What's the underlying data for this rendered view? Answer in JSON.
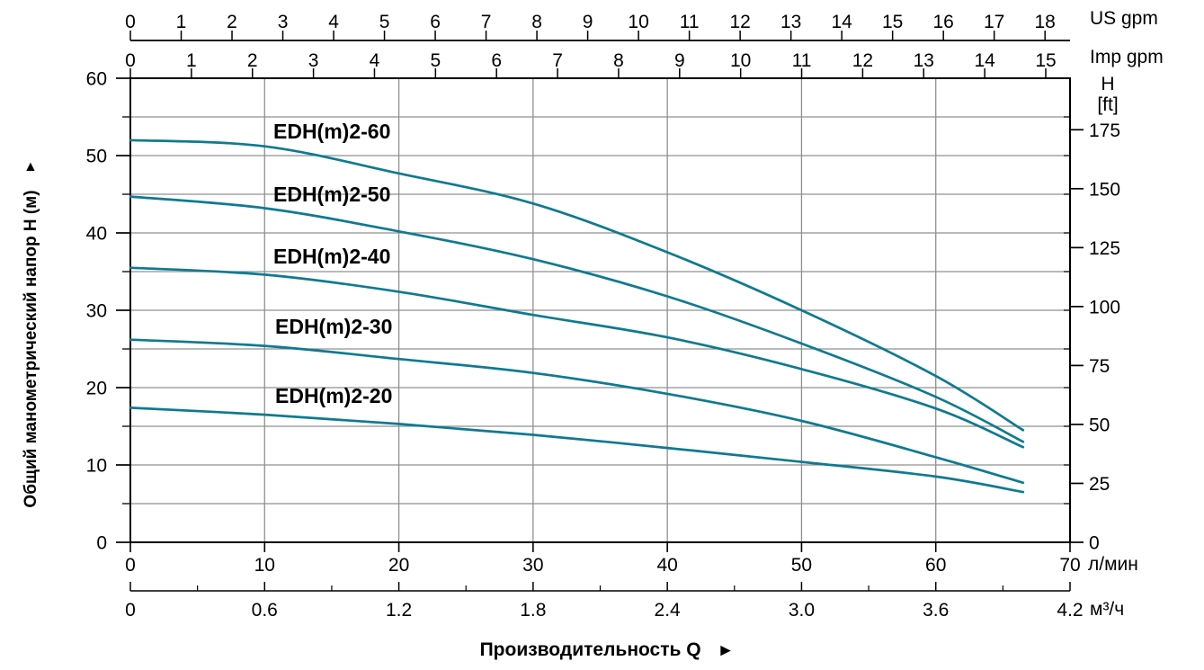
{
  "chart_data": {
    "type": "line",
    "title": "",
    "x_axis_us_gpm": {
      "label": "US gpm",
      "ticks": [
        0,
        1,
        2,
        3,
        4,
        5,
        6,
        7,
        8,
        9,
        10,
        11,
        12,
        13,
        14,
        15,
        16,
        17,
        18
      ],
      "lmin_per_unit": 3.78541
    },
    "x_axis_imp_gpm": {
      "label": "Imp gpm",
      "ticks": [
        0,
        1,
        2,
        3,
        4,
        5,
        6,
        7,
        8,
        9,
        10,
        11,
        12,
        13,
        14,
        15
      ],
      "lmin_per_unit": 4.54609
    },
    "x_axis_lmin": {
      "label": "л/мин",
      "ticks": [
        0,
        10,
        20,
        30,
        40,
        50,
        60,
        70
      ],
      "range": [
        0,
        70
      ]
    },
    "x_axis_m3h": {
      "label": "м³/ч",
      "tick_labels": [
        "0",
        "0.6",
        "1.2",
        "1.8",
        "2.4",
        "3.0",
        "3.6",
        "4.2"
      ],
      "tick_values": [
        0,
        0.6,
        1.2,
        1.8,
        2.4,
        3.0,
        3.6,
        4.2
      ],
      "minor_step": 0.3,
      "range": [
        0,
        4.2
      ]
    },
    "y_axis_m": {
      "label": "Общий манометрический напор H (м)",
      "arrow": "▲",
      "ticks": [
        0,
        10,
        20,
        30,
        40,
        50,
        60
      ],
      "minor_step": 5,
      "range": [
        0,
        60
      ]
    },
    "y_axis_ft": {
      "label_line1": "H",
      "label_line2": "[ft]",
      "ticks": [
        0,
        25,
        50,
        75,
        100,
        125,
        150,
        175
      ],
      "m_per_ft": 0.3048
    },
    "xlabel": {
      "text": "Производительность Q",
      "arrow": "►"
    },
    "grid": {
      "horizontal_step_m": 5,
      "vertical_step_lmin": 10
    },
    "colors": {
      "curve": "#0f7a90",
      "grid": "#909090",
      "axis": "#000000",
      "text": "#000000"
    },
    "series": [
      {
        "name": "EDH(m)2-60",
        "points": [
          [
            0,
            52.0
          ],
          [
            10,
            51.2
          ],
          [
            20,
            47.7
          ],
          [
            30,
            43.8
          ],
          [
            40,
            37.5
          ],
          [
            50,
            30.0
          ],
          [
            60,
            21.5
          ],
          [
            66.5,
            14.5
          ]
        ]
      },
      {
        "name": "EDH(m)2-50",
        "points": [
          [
            0,
            44.7
          ],
          [
            10,
            43.2
          ],
          [
            20,
            40.2
          ],
          [
            30,
            36.6
          ],
          [
            40,
            31.8
          ],
          [
            50,
            25.7
          ],
          [
            60,
            18.8
          ],
          [
            66.5,
            13.0
          ]
        ]
      },
      {
        "name": "EDH(m)2-40",
        "points": [
          [
            0,
            35.5
          ],
          [
            10,
            34.6
          ],
          [
            20,
            32.4
          ],
          [
            30,
            29.4
          ],
          [
            40,
            26.5
          ],
          [
            50,
            22.4
          ],
          [
            60,
            17.3
          ],
          [
            66.5,
            12.3
          ]
        ]
      },
      {
        "name": "EDH(m)2-30",
        "points": [
          [
            0,
            26.2
          ],
          [
            10,
            25.4
          ],
          [
            20,
            23.7
          ],
          [
            30,
            21.9
          ],
          [
            40,
            19.2
          ],
          [
            50,
            15.7
          ],
          [
            60,
            11.0
          ],
          [
            66.5,
            7.7
          ]
        ]
      },
      {
        "name": "EDH(m)2-20",
        "points": [
          [
            0,
            17.4
          ],
          [
            10,
            16.5
          ],
          [
            20,
            15.3
          ],
          [
            30,
            13.9
          ],
          [
            40,
            12.2
          ],
          [
            50,
            10.4
          ],
          [
            60,
            8.5
          ],
          [
            66.5,
            6.5
          ]
        ]
      }
    ]
  }
}
